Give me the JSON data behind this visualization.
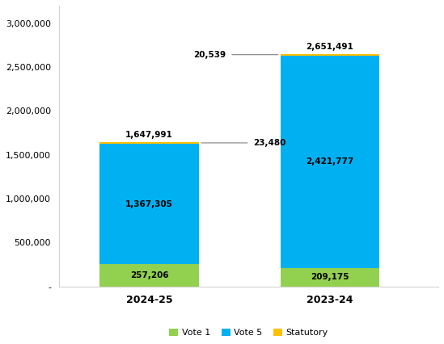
{
  "categories": [
    "2024-25",
    "2023-24"
  ],
  "vote1": [
    257206,
    209175
  ],
  "vote5": [
    1367305,
    2421777
  ],
  "statutory": [
    23480,
    20539
  ],
  "vote1_color": "#92d050",
  "vote5_color": "#00b0f0",
  "statutory_color": "#ffc000",
  "vote1_label": "Vote 1",
  "vote5_label": "Vote 5",
  "statutory_label": "Statutory",
  "ylim": [
    0,
    3200000
  ],
  "yticks": [
    0,
    500000,
    1000000,
    1500000,
    2000000,
    2500000,
    3000000
  ],
  "ytick_labels": [
    "-",
    "500,000",
    "1,000,000",
    "1,500,000",
    "2,000,000",
    "2,500,000",
    "3,000,000"
  ],
  "background_color": "#ffffff",
  "bar_width": 0.55,
  "figsize": [
    5.49,
    4.26
  ],
  "dpi": 100
}
